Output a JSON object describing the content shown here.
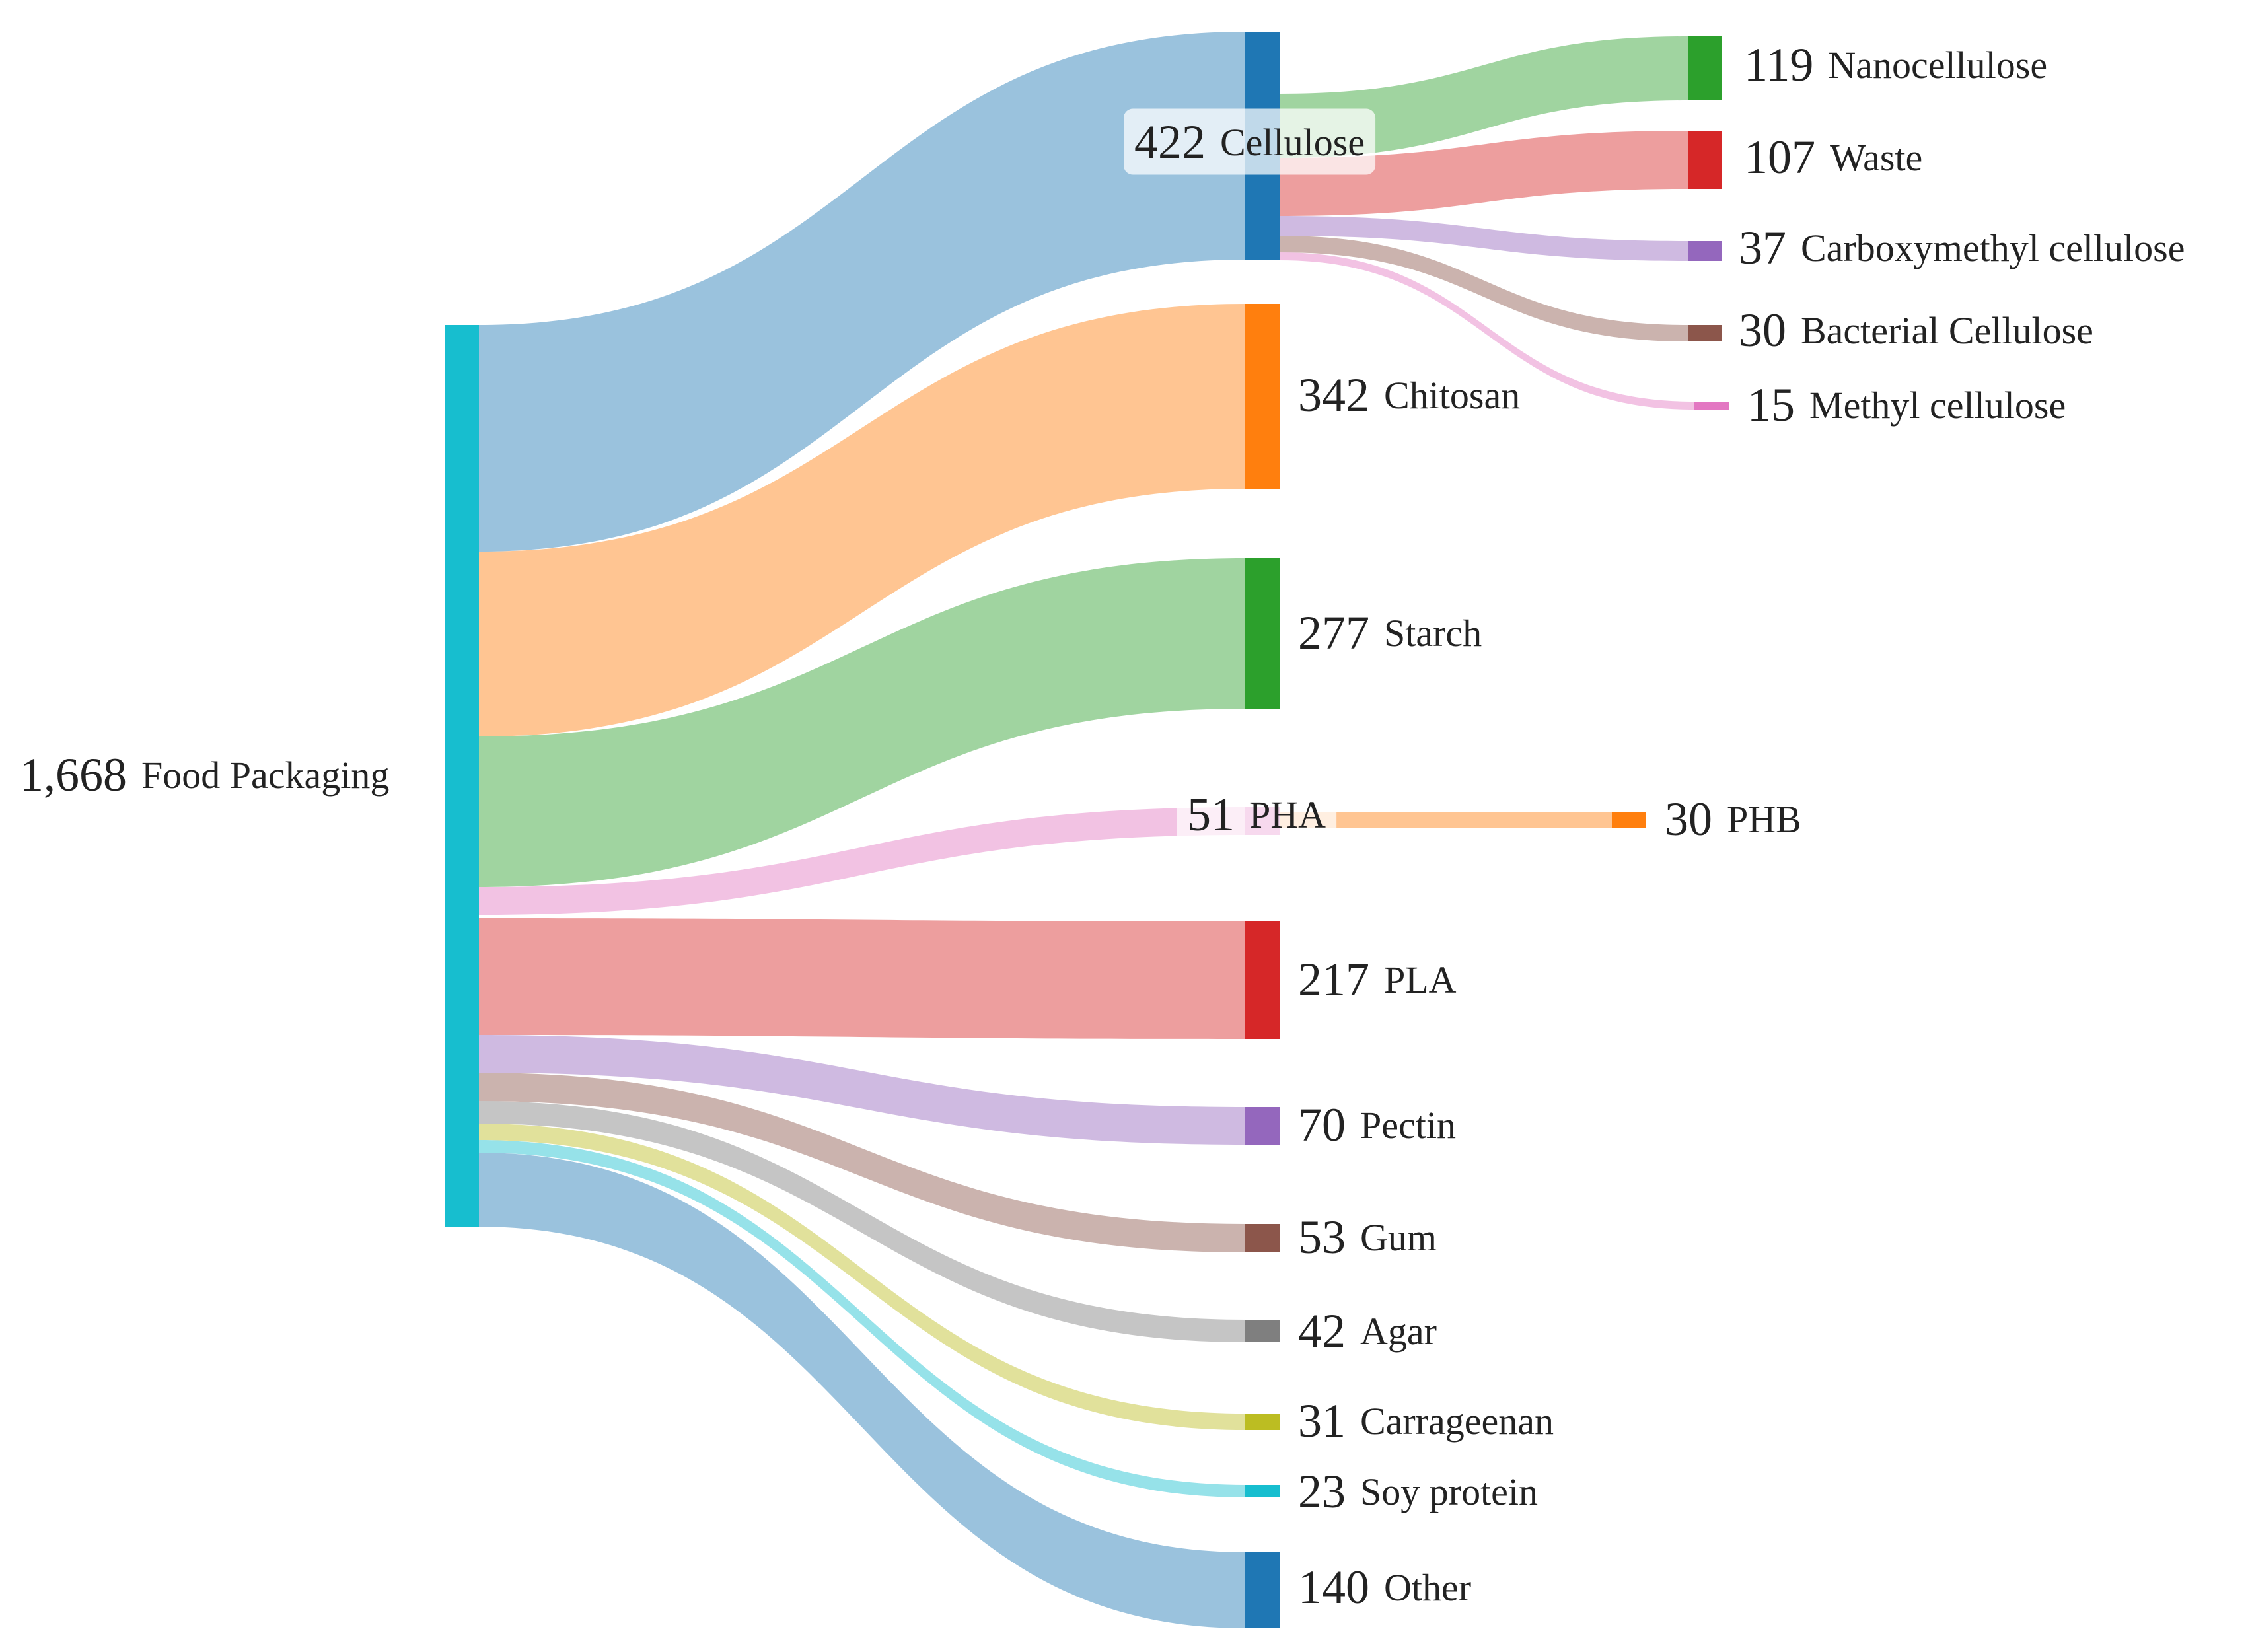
{
  "chart_data": {
    "type": "sankey",
    "title": "",
    "nodes": [
      {
        "id": "food",
        "value": "1,668",
        "name": "Food Packaging",
        "color": "#17becf"
      },
      {
        "id": "cellulose",
        "value": "422",
        "name": "Cellulose",
        "color": "#1f77b4"
      },
      {
        "id": "chitosan",
        "value": "342",
        "name": "Chitosan",
        "color": "#ff7f0e"
      },
      {
        "id": "starch",
        "value": "277",
        "name": "Starch",
        "color": "#2ca02c"
      },
      {
        "id": "pha",
        "value": "51",
        "name": "PHA",
        "color": "#e377c2"
      },
      {
        "id": "pla",
        "value": "217",
        "name": "PLA",
        "color": "#d62728"
      },
      {
        "id": "pectin",
        "value": "70",
        "name": "Pectin",
        "color": "#9467bd"
      },
      {
        "id": "gum",
        "value": "53",
        "name": "Gum",
        "color": "#8c564b"
      },
      {
        "id": "agar",
        "value": "42",
        "name": "Agar",
        "color": "#7f7f7f"
      },
      {
        "id": "carrageenan",
        "value": "31",
        "name": "Carrageenan",
        "color": "#bcbd22"
      },
      {
        "id": "soy",
        "value": "23",
        "name": "Soy protein",
        "color": "#17becf"
      },
      {
        "id": "other",
        "value": "140",
        "name": "Other",
        "color": "#1f77b4"
      },
      {
        "id": "nanocellulose",
        "value": "119",
        "name": "Nanocellulose",
        "color": "#2ca02c"
      },
      {
        "id": "waste",
        "value": "107",
        "name": "Waste",
        "color": "#d62728"
      },
      {
        "id": "cmc",
        "value": "37",
        "name": "Carboxymethyl cellulose",
        "color": "#9467bd"
      },
      {
        "id": "bacterial",
        "value": "30",
        "name": "Bacterial Cellulose",
        "color": "#8c564b"
      },
      {
        "id": "methyl",
        "value": "15",
        "name": "Methyl cellulose",
        "color": "#e377c2"
      },
      {
        "id": "phb",
        "value": "30",
        "name": "PHB",
        "color": "#ff7f0e"
      }
    ],
    "links": [
      {
        "source": "food",
        "target": "cellulose",
        "value": 422
      },
      {
        "source": "food",
        "target": "chitosan",
        "value": 342
      },
      {
        "source": "food",
        "target": "starch",
        "value": 277
      },
      {
        "source": "food",
        "target": "pha",
        "value": 51
      },
      {
        "source": "food",
        "target": "pla",
        "value": 217
      },
      {
        "source": "food",
        "target": "pectin",
        "value": 70
      },
      {
        "source": "food",
        "target": "gum",
        "value": 53
      },
      {
        "source": "food",
        "target": "agar",
        "value": 42
      },
      {
        "source": "food",
        "target": "carrageenan",
        "value": 31
      },
      {
        "source": "food",
        "target": "soy",
        "value": 23
      },
      {
        "source": "food",
        "target": "other",
        "value": 140
      },
      {
        "source": "cellulose",
        "target": "nanocellulose",
        "value": 119
      },
      {
        "source": "cellulose",
        "target": "waste",
        "value": 107
      },
      {
        "source": "cellulose",
        "target": "cmc",
        "value": 37
      },
      {
        "source": "cellulose",
        "target": "bacterial",
        "value": 30
      },
      {
        "source": "cellulose",
        "target": "methyl",
        "value": 15
      },
      {
        "source": "pha",
        "target": "phb",
        "value": 30
      }
    ]
  }
}
